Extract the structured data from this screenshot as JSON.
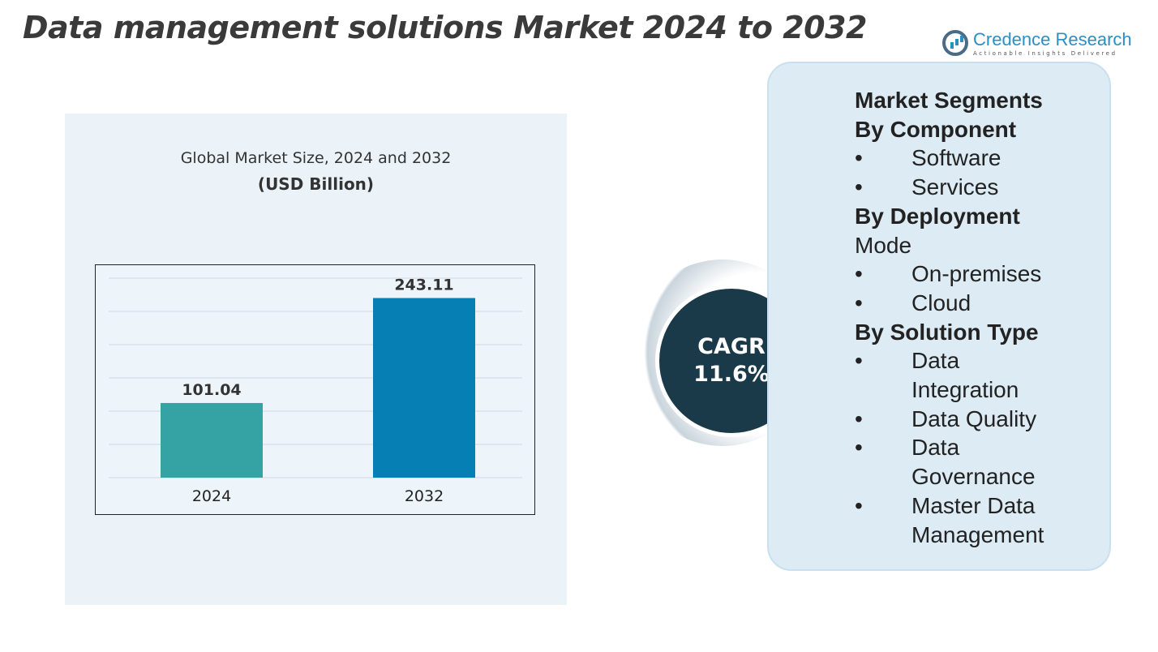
{
  "title": "Data management solutions Market 2024 to 2032",
  "logo": {
    "name": "Credence Research",
    "tagline": "Actionable Insights Delivered"
  },
  "chart_data": {
    "type": "bar",
    "title": "Global Market Size, 2024 and 2032",
    "subtitle": "(USD Billion)",
    "categories": [
      "2024",
      "2032"
    ],
    "values": [
      101.04,
      243.11
    ],
    "data_labels": [
      "101.04",
      "243.11"
    ],
    "colors": [
      "#35a3a3",
      "#0680b4"
    ],
    "grid": true
  },
  "cagr": {
    "label": "CAGR",
    "value": "11.6%"
  },
  "segments": {
    "heading": "Market Segments",
    "groups": [
      {
        "title": "By Component",
        "items": [
          "Software",
          "Services"
        ]
      },
      {
        "title": "By Deployment",
        "title_cont": "Mode",
        "items": [
          "On-premises",
          "Cloud"
        ]
      },
      {
        "title": "By Solution Type",
        "items": [
          "Data Integration",
          "Data Quality",
          "Data Governance",
          "Master Data Management"
        ]
      }
    ]
  }
}
